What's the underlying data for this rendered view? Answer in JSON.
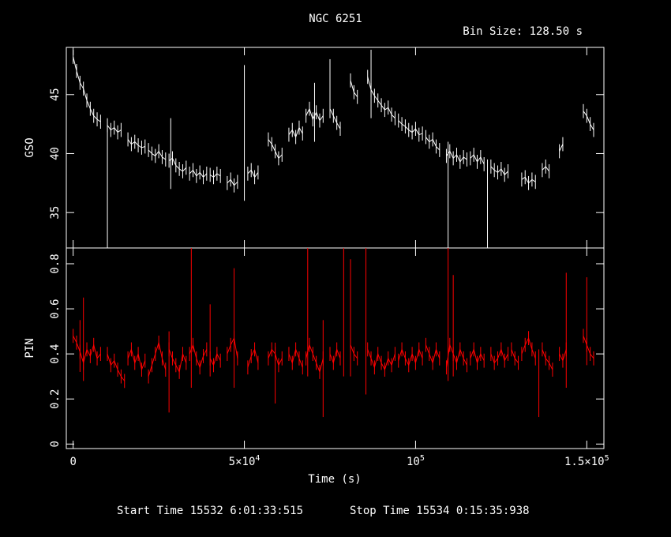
{
  "chart_data": {
    "type": "line",
    "title": "NGC 6251",
    "subtitle": "Bin Size: 128.50 s",
    "xlabel": "Time (s)",
    "xlim": [
      -2000,
      155000
    ],
    "x_ticks": [
      {
        "v": 0,
        "label": "0"
      },
      {
        "v": 50000,
        "label": "5×10",
        "sup": "4"
      },
      {
        "v": 100000,
        "label": "10",
        "sup": "5"
      },
      {
        "v": 150000,
        "label": "1.5×10",
        "sup": "5"
      }
    ],
    "footer": {
      "start": "Start Time 15532  6:01:33:515",
      "stop": "Stop Time 15534  0:15:35:938"
    },
    "panels": [
      {
        "name": "GSO",
        "ylabel": "GSO",
        "color": "#ffffff",
        "ylim": [
          32,
          49
        ],
        "y_ticks": [
          35,
          40,
          45
        ],
        "segments": [
          {
            "x": [
              0,
              1000,
              2000,
              3000,
              4000,
              5000,
              6000,
              7000,
              8000
            ],
            "y": [
              48.2,
              47.0,
              46.0,
              45.5,
              44.5,
              43.8,
              43.2,
              42.9,
              42.7
            ]
          },
          {
            "x": [
              10000,
              11000,
              12000,
              13000,
              14000
            ],
            "y": [
              42.4,
              42.0,
              42.2,
              41.8,
              42.0
            ]
          },
          {
            "x": [
              16000,
              17000,
              18000,
              19000,
              20000,
              21000
            ],
            "y": [
              41.2,
              40.8,
              41.0,
              40.7,
              40.5,
              40.6
            ]
          },
          {
            "x": [
              22000,
              23000,
              24000,
              25000,
              26000,
              27000
            ],
            "y": [
              40.3,
              40.0,
              39.8,
              40.2,
              39.7,
              39.5
            ]
          },
          {
            "x": [
              28000,
              29000,
              30000,
              31000,
              32000,
              33000
            ],
            "y": [
              39.4,
              39.6,
              39.0,
              38.7,
              38.5,
              38.8
            ]
          },
          {
            "x": [
              34000,
              35000,
              36000,
              37000,
              38000,
              39000
            ],
            "y": [
              38.3,
              38.6,
              38.1,
              38.4,
              38.0,
              38.3
            ]
          },
          {
            "x": [
              40000,
              41000,
              42000,
              43000
            ],
            "y": [
              38.2,
              38.0,
              38.3,
              38.1
            ]
          },
          {
            "x": [
              45000,
              46000,
              47000,
              48000
            ],
            "y": [
              37.5,
              37.8,
              37.3,
              37.6
            ]
          },
          {
            "x": [
              51000,
              52000,
              53000,
              54000
            ],
            "y": [
              38.3,
              38.6,
              38.0,
              38.4
            ]
          },
          {
            "x": [
              57000,
              58000,
              59000,
              60000,
              61000
            ],
            "y": [
              41.2,
              40.8,
              40.2,
              39.6,
              39.9
            ]
          },
          {
            "x": [
              63000,
              64000,
              65000,
              66000,
              67000
            ],
            "y": [
              41.6,
              42.0,
              41.4,
              42.2,
              41.7
            ]
          },
          {
            "x": [
              68000,
              69000,
              70000,
              71000,
              72000,
              73000
            ],
            "y": [
              43.2,
              43.8,
              42.9,
              43.5,
              42.8,
              43.2
            ]
          },
          {
            "x": [
              75000,
              76000,
              77000,
              78000
            ],
            "y": [
              43.8,
              43.2,
              42.6,
              42.1
            ]
          },
          {
            "x": [
              81000,
              82000,
              83000
            ],
            "y": [
              46.2,
              45.2,
              44.8
            ]
          },
          {
            "x": [
              86000,
              87000,
              88000,
              89000,
              90000,
              91000,
              92000,
              93000,
              94000
            ],
            "y": [
              46.5,
              45.4,
              44.9,
              44.5,
              44.1,
              43.7,
              43.9,
              43.3,
              43.0
            ]
          },
          {
            "x": [
              95000,
              96000,
              97000,
              98000,
              99000,
              100000,
              101000,
              102000
            ],
            "y": [
              42.8,
              42.5,
              42.3,
              42.0,
              41.8,
              42.1,
              41.6,
              41.7
            ]
          },
          {
            "x": [
              103000,
              104000,
              105000,
              106000,
              107000
            ],
            "y": [
              41.4,
              41.0,
              41.2,
              40.6,
              40.3
            ]
          },
          {
            "x": [
              109000,
              110000,
              111000,
              112000,
              113000,
              114000,
              115000
            ],
            "y": [
              39.8,
              40.2,
              39.6,
              39.9,
              39.3,
              39.7,
              39.5
            ]
          },
          {
            "x": [
              116000,
              117000,
              118000,
              119000,
              120000
            ],
            "y": [
              39.6,
              39.9,
              39.3,
              39.7,
              39.1
            ]
          },
          {
            "x": [
              122000,
              123000,
              124000,
              125000,
              126000,
              127000
            ],
            "y": [
              38.9,
              38.6,
              38.4,
              38.7,
              38.2,
              38.5
            ]
          },
          {
            "x": [
              131000,
              132000,
              133000,
              134000,
              135000
            ],
            "y": [
              37.8,
              38.0,
              37.5,
              37.8,
              37.6
            ]
          },
          {
            "x": [
              137000,
              138000,
              139000
            ],
            "y": [
              38.6,
              38.9,
              38.5
            ]
          },
          {
            "x": [
              142000,
              143000
            ],
            "y": [
              40.2,
              40.8
            ]
          },
          {
            "x": [
              149000,
              150000,
              151000,
              152000
            ],
            "y": [
              43.6,
              43.2,
              42.5,
              42.0
            ]
          }
        ],
        "spikes": [
          {
            "x": 10000,
            "y0": 32,
            "y1": 42.4
          },
          {
            "x": 28500,
            "y0": 37,
            "y1": 43
          },
          {
            "x": 50000,
            "y0": 36,
            "y1": 47.5
          },
          {
            "x": 70500,
            "y0": 41,
            "y1": 46
          },
          {
            "x": 75000,
            "y0": 43,
            "y1": 48
          },
          {
            "x": 87000,
            "y0": 43,
            "y1": 48.8
          },
          {
            "x": 109500,
            "y0": 32,
            "y1": 41
          },
          {
            "x": 121000,
            "y0": 32,
            "y1": 39.5
          }
        ]
      },
      {
        "name": "PIN",
        "ylabel": "PIN",
        "color": "#ff0000",
        "ylim": [
          -0.02,
          0.87
        ],
        "y_ticks": [
          0,
          0.2,
          0.4,
          0.6,
          0.8
        ],
        "segments": [
          {
            "x": [
              0,
              1000,
              2000,
              3000,
              4000,
              5000,
              6000,
              7000,
              8000
            ],
            "y": [
              0.48,
              0.45,
              0.41,
              0.36,
              0.42,
              0.39,
              0.44,
              0.38,
              0.4
            ]
          },
          {
            "x": [
              10000,
              11000,
              12000,
              13000,
              14000,
              15000
            ],
            "y": [
              0.4,
              0.35,
              0.37,
              0.33,
              0.3,
              0.28
            ]
          },
          {
            "x": [
              16000,
              17000,
              18000,
              19000,
              20000,
              21000
            ],
            "y": [
              0.38,
              0.42,
              0.36,
              0.4,
              0.33,
              0.37
            ]
          },
          {
            "x": [
              22000,
              23000,
              24000,
              25000,
              26000,
              27000
            ],
            "y": [
              0.3,
              0.35,
              0.4,
              0.45,
              0.38,
              0.33
            ]
          },
          {
            "x": [
              28000,
              29000,
              30000,
              31000,
              32000,
              33000
            ],
            "y": [
              0.42,
              0.38,
              0.35,
              0.32,
              0.4,
              0.36
            ]
          },
          {
            "x": [
              34000,
              35000,
              36000,
              37000,
              38000,
              39000
            ],
            "y": [
              0.4,
              0.44,
              0.38,
              0.34,
              0.39,
              0.42
            ]
          },
          {
            "x": [
              40000,
              41000,
              42000,
              43000
            ],
            "y": [
              0.38,
              0.35,
              0.4,
              0.37
            ]
          },
          {
            "x": [
              45000,
              46000,
              47000,
              48000
            ],
            "y": [
              0.4,
              0.44,
              0.47,
              0.38
            ]
          },
          {
            "x": [
              51000,
              52000,
              53000,
              54000
            ],
            "y": [
              0.34,
              0.39,
              0.42,
              0.36
            ]
          },
          {
            "x": [
              57000,
              58000,
              59000,
              60000,
              61000
            ],
            "y": [
              0.38,
              0.42,
              0.4,
              0.35,
              0.38
            ]
          },
          {
            "x": [
              63000,
              64000,
              65000,
              66000,
              67000
            ],
            "y": [
              0.4,
              0.36,
              0.42,
              0.38,
              0.34
            ]
          },
          {
            "x": [
              68000,
              69000,
              70000,
              71000,
              72000,
              73000
            ],
            "y": [
              0.38,
              0.44,
              0.4,
              0.36,
              0.32,
              0.38
            ]
          },
          {
            "x": [
              75000,
              76000,
              77000,
              78000
            ],
            "y": [
              0.4,
              0.36,
              0.42,
              0.38
            ]
          },
          {
            "x": [
              81000,
              82000,
              83000
            ],
            "y": [
              0.44,
              0.4,
              0.38
            ]
          },
          {
            "x": [
              86000,
              87000,
              88000,
              89000,
              90000,
              91000,
              92000,
              93000,
              94000
            ],
            "y": [
              0.42,
              0.38,
              0.34,
              0.4,
              0.36,
              0.33,
              0.38,
              0.35,
              0.4
            ]
          },
          {
            "x": [
              95000,
              96000,
              97000,
              98000,
              99000,
              100000,
              101000,
              102000
            ],
            "y": [
              0.37,
              0.42,
              0.38,
              0.35,
              0.4,
              0.36,
              0.42,
              0.38
            ]
          },
          {
            "x": [
              103000,
              104000,
              105000,
              106000,
              107000
            ],
            "y": [
              0.44,
              0.4,
              0.36,
              0.42,
              0.38
            ]
          },
          {
            "x": [
              109000,
              110000,
              111000,
              112000,
              113000,
              114000,
              115000
            ],
            "y": [
              0.34,
              0.44,
              0.4,
              0.36,
              0.42,
              0.38,
              0.35
            ]
          },
          {
            "x": [
              116000,
              117000,
              118000,
              119000,
              120000
            ],
            "y": [
              0.38,
              0.42,
              0.36,
              0.4,
              0.37
            ]
          },
          {
            "x": [
              122000,
              123000,
              124000,
              125000,
              126000,
              127000
            ],
            "y": [
              0.4,
              0.36,
              0.38,
              0.42,
              0.37,
              0.4
            ]
          },
          {
            "x": [
              128000,
              129000,
              130000
            ],
            "y": [
              0.42,
              0.38,
              0.36
            ]
          },
          {
            "x": [
              131000,
              132000,
              133000,
              134000,
              135000
            ],
            "y": [
              0.4,
              0.44,
              0.47,
              0.42,
              0.38
            ]
          },
          {
            "x": [
              137000,
              138000,
              139000,
              140000
            ],
            "y": [
              0.42,
              0.38,
              0.36,
              0.33
            ]
          },
          {
            "x": [
              142000,
              143000,
              144000
            ],
            "y": [
              0.4,
              0.37,
              0.42
            ]
          },
          {
            "x": [
              149000,
              150000,
              151000,
              152000
            ],
            "y": [
              0.48,
              0.44,
              0.4,
              0.38
            ]
          }
        ],
        "spikes": [
          {
            "x": 2000,
            "y0": 0.32,
            "y1": 0.55
          },
          {
            "x": 3000,
            "y0": 0.28,
            "y1": 0.65
          },
          {
            "x": 28000,
            "y0": 0.14,
            "y1": 0.5
          },
          {
            "x": 34500,
            "y0": 0.25,
            "y1": 0.87
          },
          {
            "x": 40000,
            "y0": 0.3,
            "y1": 0.62
          },
          {
            "x": 47000,
            "y0": 0.25,
            "y1": 0.78
          },
          {
            "x": 59000,
            "y0": 0.18,
            "y1": 0.45
          },
          {
            "x": 68500,
            "y0": 0.3,
            "y1": 0.87
          },
          {
            "x": 73000,
            "y0": 0.12,
            "y1": 0.55
          },
          {
            "x": 79000,
            "y0": 0.3,
            "y1": 0.87
          },
          {
            "x": 81000,
            "y0": 0.3,
            "y1": 0.82
          },
          {
            "x": 85500,
            "y0": 0.22,
            "y1": 0.87
          },
          {
            "x": 109500,
            "y0": 0.28,
            "y1": 0.87
          },
          {
            "x": 111000,
            "y0": 0.3,
            "y1": 0.75
          },
          {
            "x": 136000,
            "y0": 0.12,
            "y1": 0.42
          },
          {
            "x": 144000,
            "y0": 0.25,
            "y1": 0.76
          },
          {
            "x": 150000,
            "y0": 0.35,
            "y1": 0.74
          }
        ]
      }
    ]
  }
}
